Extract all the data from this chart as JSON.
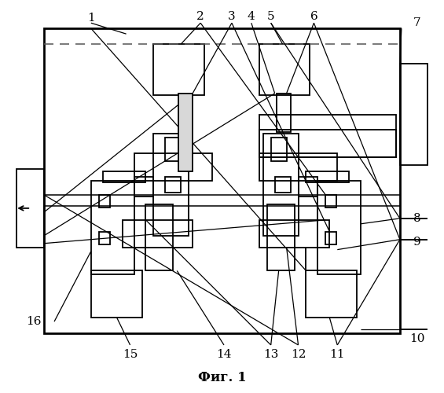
{
  "title": "Фиг. 1",
  "bg_color": "#ffffff",
  "line_color": "#000000",
  "lw": 1.3,
  "fig_width": 5.65,
  "fig_height": 5.0
}
